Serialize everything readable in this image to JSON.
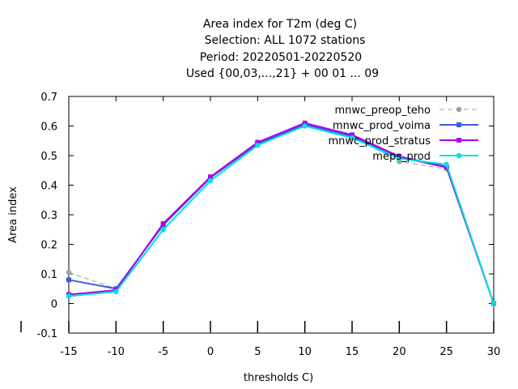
{
  "chart_data": {
    "type": "line",
    "title_lines": [
      "Area index  for T2m (deg C)",
      "Selection: ALL    1072 stations",
      "Period: 20220501-20220520",
      "Used {00,03,...,21} + 00 01 ... 09"
    ],
    "xlabel": "thresholds C)",
    "ylabel": "Area index",
    "x": [
      -15,
      -10,
      -5,
      0,
      5,
      10,
      15,
      20,
      25,
      30
    ],
    "xlim": [
      -15,
      30
    ],
    "ylim": [
      -0.1,
      0.7
    ],
    "x_ticks": [
      "-15",
      "-10",
      "-5",
      "0",
      "5",
      "10",
      "15",
      "20",
      "25",
      "30"
    ],
    "y_ticks": [
      "-0.1",
      "0",
      "0.1",
      "0.2",
      "0.3",
      "0.4",
      "0.5",
      "0.6",
      "0.7"
    ],
    "legend_position": "top-right",
    "grid": false,
    "series": [
      {
        "name": "mnwc_preop_teho",
        "color": "#a0a0a0",
        "dash": true,
        "marker": "circle",
        "values": [
          0.105,
          0.05,
          0.265,
          0.425,
          0.54,
          0.605,
          0.565,
          0.48,
          0.455,
          0.0
        ]
      },
      {
        "name": "mnwc_prod_voima",
        "color": "#3c5ed6",
        "dash": false,
        "marker": "square",
        "values": [
          0.08,
          0.05,
          0.265,
          0.425,
          0.54,
          0.605,
          0.565,
          0.495,
          0.46,
          0.0
        ]
      },
      {
        "name": "mnwc_prod_stratus",
        "color": "#aa00ee",
        "dash": false,
        "marker": "square",
        "values": [
          0.03,
          0.045,
          0.27,
          0.428,
          0.545,
          0.61,
          0.57,
          0.497,
          0.462,
          0.0
        ]
      },
      {
        "name": "meps_prod",
        "color": "#00e0e0",
        "dash": false,
        "marker": "circle",
        "values": [
          0.025,
          0.04,
          0.25,
          0.415,
          0.535,
          0.6,
          0.56,
          0.49,
          0.47,
          0.0
        ]
      }
    ]
  }
}
